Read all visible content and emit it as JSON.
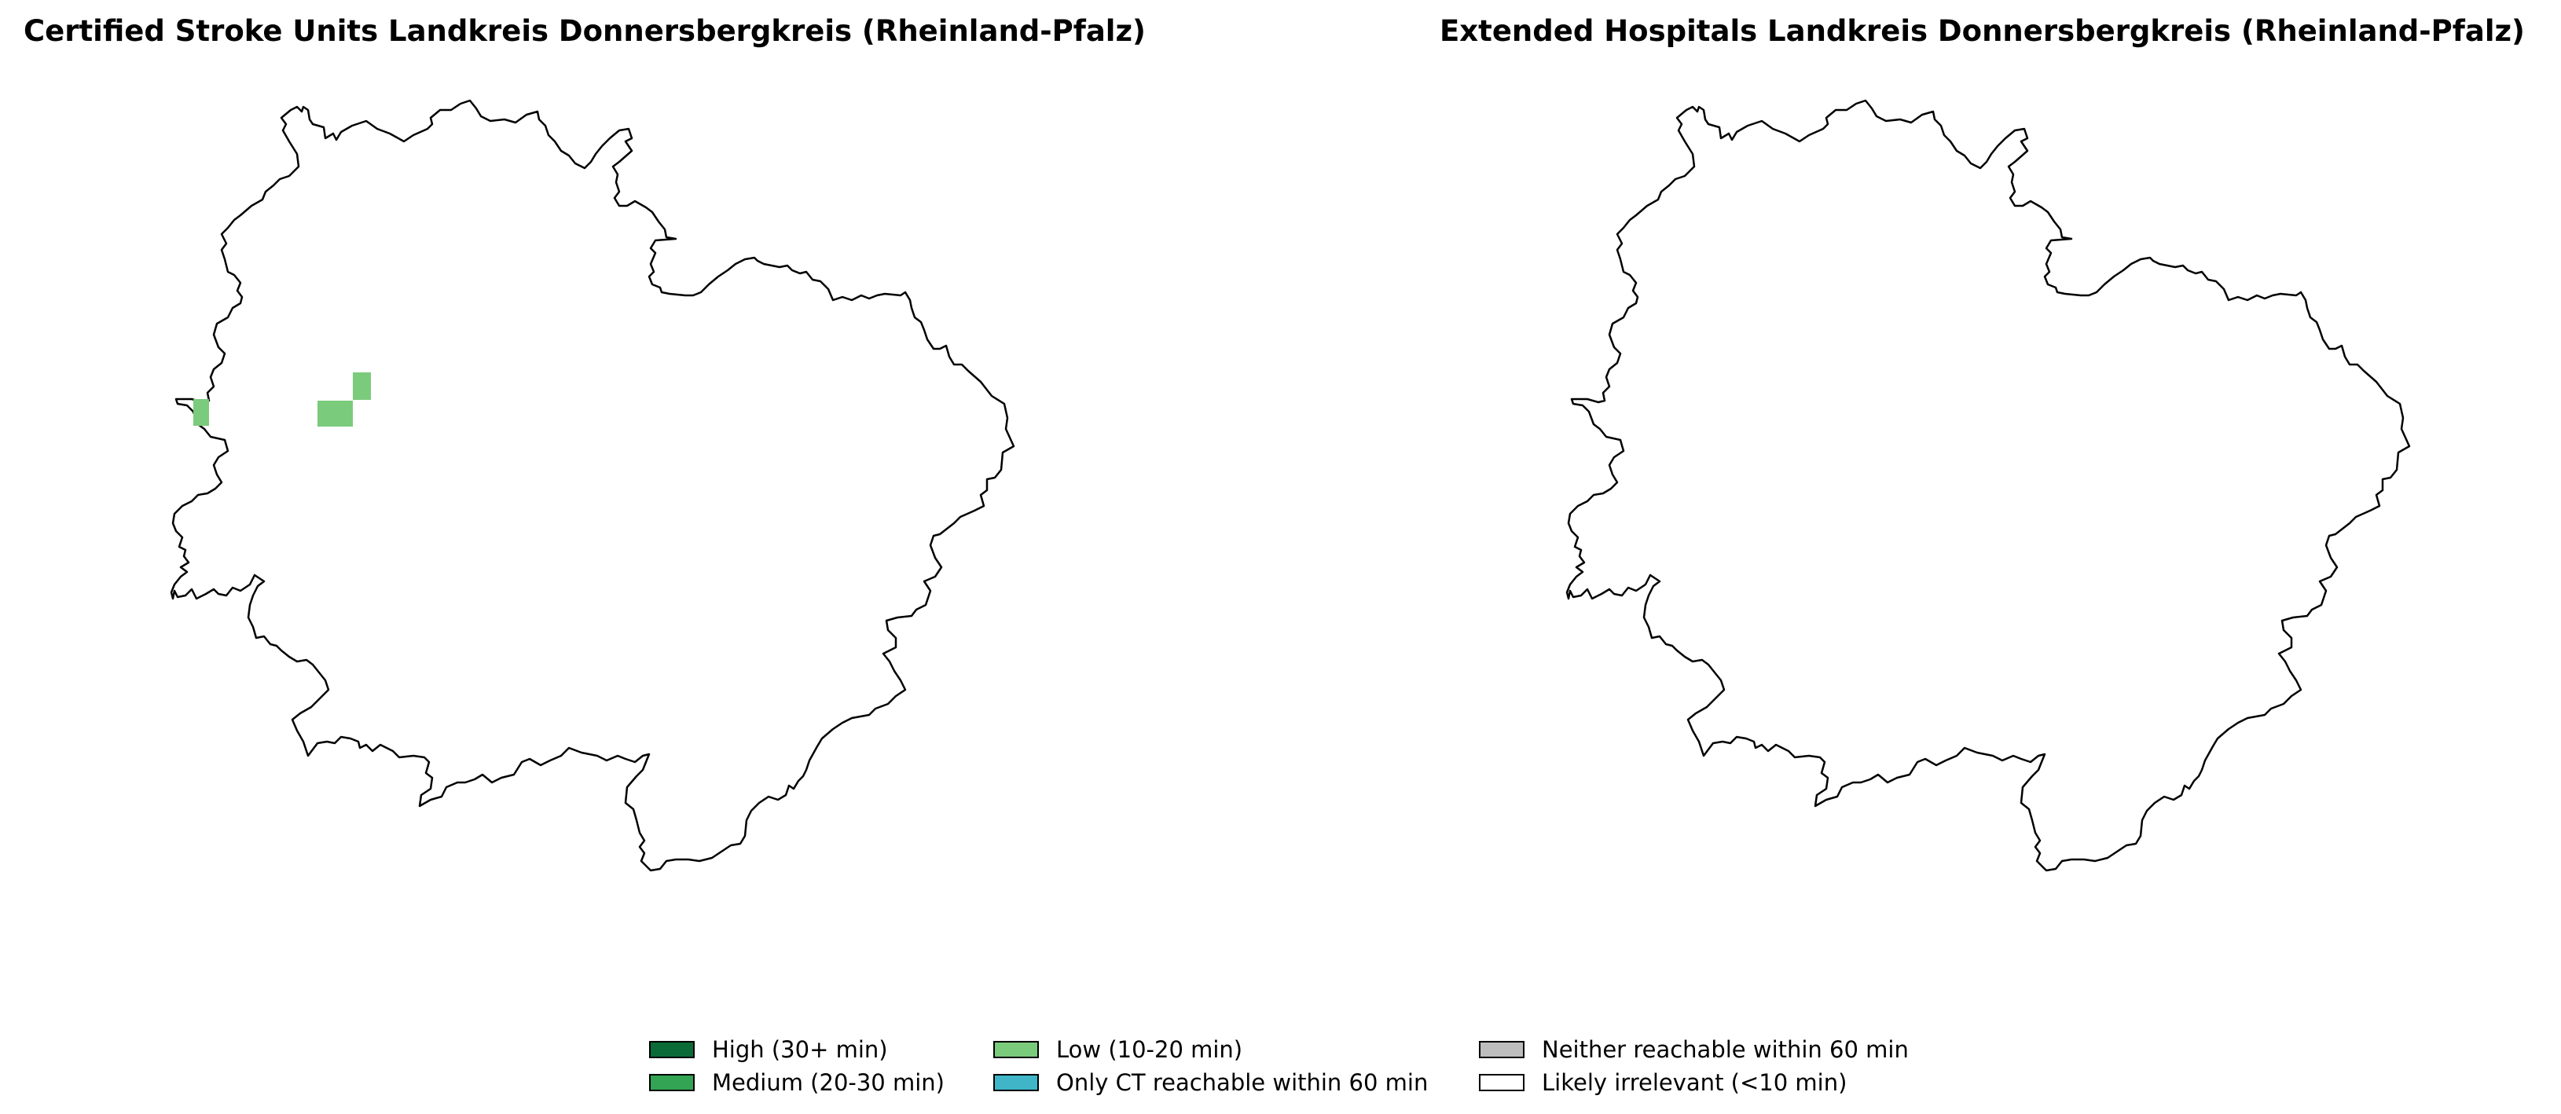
{
  "maps": [
    {
      "title": "Certified Stroke Units Landkreis Donnersbergkreis (Rheinland-Pfalz)",
      "highlighted_cells": [
        {
          "category": "Low (10-20 min)",
          "count": 2
        },
        {
          "category": "Low (10-20 min)",
          "count": 1
        },
        {
          "category": "Low (10-20 min)",
          "count": 1
        }
      ]
    },
    {
      "title": "Extended Hospitals Landkreis Donnersbergkreis (Rheinland-Pfalz)",
      "highlighted_cells": []
    }
  ],
  "legend": [
    {
      "label": "High (30+ min)",
      "color": "#0b6b38"
    },
    {
      "label": "Medium (20-30 min)",
      "color": "#33a354"
    },
    {
      "label": "Low (10-20 min)",
      "color": "#7bcb7c"
    },
    {
      "label": "Only CT reachable within 60 min",
      "color": "#40b5c8"
    },
    {
      "label": "Neither reachable within 60 min",
      "color": "#bdbdbd"
    },
    {
      "label": "Likely irrelevant (<10 min)",
      "color": "#ffffff"
    }
  ],
  "colors": {
    "boundary": "#000000",
    "low": "#7bcb7c"
  }
}
